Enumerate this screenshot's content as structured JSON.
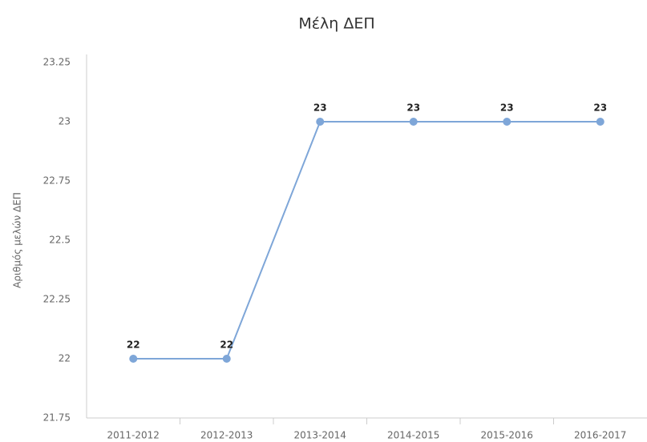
{
  "chart_data": {
    "type": "line",
    "title": "Μέλη ΔΕΠ",
    "y_label": "Αριθμός μελών ΔΕΠ",
    "categories": [
      "2011-2012",
      "2012-2013",
      "2013-2014",
      "2014-2015",
      "2015-2016",
      "2016-2017"
    ],
    "series": [
      {
        "name": "Μέλη ΔΕΠ",
        "color": "#7ea6d8",
        "values": [
          22,
          22,
          23,
          23,
          23,
          23
        ]
      }
    ],
    "ylim": [
      21.75,
      23.25
    ],
    "yticks": [
      21.75,
      22,
      22.25,
      22.5,
      22.75,
      23,
      23.25
    ],
    "grid": false
  }
}
